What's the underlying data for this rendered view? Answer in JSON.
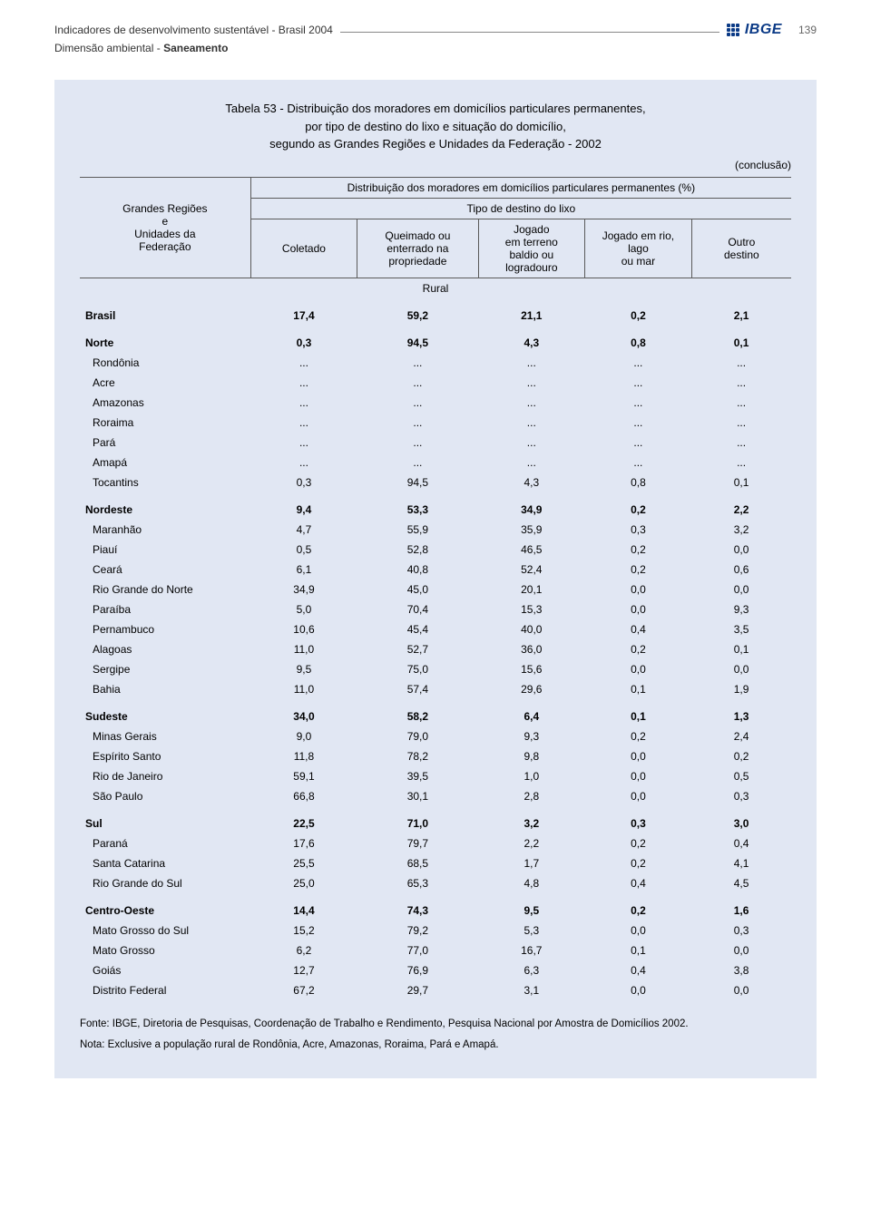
{
  "document": {
    "header_line1": "Indicadores de desenvolvimento sustentável - Brasil 2004",
    "header_line2_prefix": "Dimensão ambiental - ",
    "header_line2_bold": "Saneamento",
    "page_number": "139",
    "logo_text": "IBGE"
  },
  "table": {
    "title_line1": "Tabela 53 - Distribuição dos moradores em domicílios particulares permanentes,",
    "title_line2": "por tipo de destino do lixo e situação do domicílio,",
    "title_line3": "segundo as Grandes Regiões e Unidades da Federação - 2002",
    "conclusao": "(conclusão)",
    "dist_caption": "Distribuição dos moradores em domicílios particulares permanentes (%)",
    "col_region_line1": "Grandes Regiões",
    "col_region_line2": "e",
    "col_region_line3": "Unidades da",
    "col_region_line4": "Federação",
    "col_tipo": "Tipo de destino do lixo",
    "col_coletado": "Coletado",
    "col_queimado_l1": "Queimado ou",
    "col_queimado_l2": "enterrado na",
    "col_queimado_l3": "propriedade",
    "col_jogado_terreno_l1": "Jogado",
    "col_jogado_terreno_l2": "em terreno",
    "col_jogado_terreno_l3": "baldio ou",
    "col_jogado_terreno_l4": "logradouro",
    "col_jogado_rio_l1": "Jogado em rio,",
    "col_jogado_rio_l2": "lago",
    "col_jogado_rio_l3": "ou mar",
    "col_outro_l1": "Outro",
    "col_outro_l2": "destino",
    "rural_label": "Rural",
    "rows": [
      {
        "label": "Brasil",
        "bold": true,
        "v": [
          "17,4",
          "59,2",
          "21,1",
          "0,2",
          "2,1"
        ]
      },
      {
        "label": "Norte",
        "bold": true,
        "v": [
          "0,3",
          "94,5",
          "4,3",
          "0,8",
          "0,1"
        ]
      },
      {
        "label": "Rondônia",
        "bold": false,
        "v": [
          "...",
          "...",
          "...",
          "...",
          "..."
        ]
      },
      {
        "label": "Acre",
        "bold": false,
        "v": [
          "...",
          "...",
          "...",
          "...",
          "..."
        ]
      },
      {
        "label": "Amazonas",
        "bold": false,
        "v": [
          "...",
          "...",
          "...",
          "...",
          "..."
        ]
      },
      {
        "label": "Roraima",
        "bold": false,
        "v": [
          "...",
          "...",
          "...",
          "...",
          "..."
        ]
      },
      {
        "label": "Pará",
        "bold": false,
        "v": [
          "...",
          "...",
          "...",
          "...",
          "..."
        ]
      },
      {
        "label": "Amapá",
        "bold": false,
        "v": [
          "...",
          "...",
          "...",
          "...",
          "..."
        ]
      },
      {
        "label": "Tocantins",
        "bold": false,
        "v": [
          "0,3",
          "94,5",
          "4,3",
          "0,8",
          "0,1"
        ]
      },
      {
        "label": "Nordeste",
        "bold": true,
        "v": [
          "9,4",
          "53,3",
          "34,9",
          "0,2",
          "2,2"
        ]
      },
      {
        "label": "Maranhão",
        "bold": false,
        "v": [
          "4,7",
          "55,9",
          "35,9",
          "0,3",
          "3,2"
        ]
      },
      {
        "label": "Piauí",
        "bold": false,
        "v": [
          "0,5",
          "52,8",
          "46,5",
          "0,2",
          "0,0"
        ]
      },
      {
        "label": "Ceará",
        "bold": false,
        "v": [
          "6,1",
          "40,8",
          "52,4",
          "0,2",
          "0,6"
        ]
      },
      {
        "label": "Rio Grande do Norte",
        "bold": false,
        "v": [
          "34,9",
          "45,0",
          "20,1",
          "0,0",
          "0,0"
        ]
      },
      {
        "label": "Paraíba",
        "bold": false,
        "v": [
          "5,0",
          "70,4",
          "15,3",
          "0,0",
          "9,3"
        ]
      },
      {
        "label": "Pernambuco",
        "bold": false,
        "v": [
          "10,6",
          "45,4",
          "40,0",
          "0,4",
          "3,5"
        ]
      },
      {
        "label": "Alagoas",
        "bold": false,
        "v": [
          "11,0",
          "52,7",
          "36,0",
          "0,2",
          "0,1"
        ]
      },
      {
        "label": "Sergipe",
        "bold": false,
        "v": [
          "9,5",
          "75,0",
          "15,6",
          "0,0",
          "0,0"
        ]
      },
      {
        "label": "Bahia",
        "bold": false,
        "v": [
          "11,0",
          "57,4",
          "29,6",
          "0,1",
          "1,9"
        ]
      },
      {
        "label": "Sudeste",
        "bold": true,
        "v": [
          "34,0",
          "58,2",
          "6,4",
          "0,1",
          "1,3"
        ]
      },
      {
        "label": "Minas Gerais",
        "bold": false,
        "v": [
          "9,0",
          "79,0",
          "9,3",
          "0,2",
          "2,4"
        ]
      },
      {
        "label": "Espírito Santo",
        "bold": false,
        "v": [
          "11,8",
          "78,2",
          "9,8",
          "0,0",
          "0,2"
        ]
      },
      {
        "label": "Rio de Janeiro",
        "bold": false,
        "v": [
          "59,1",
          "39,5",
          "1,0",
          "0,0",
          "0,5"
        ]
      },
      {
        "label": "São Paulo",
        "bold": false,
        "v": [
          "66,8",
          "30,1",
          "2,8",
          "0,0",
          "0,3"
        ]
      },
      {
        "label": "Sul",
        "bold": true,
        "v": [
          "22,5",
          "71,0",
          "3,2",
          "0,3",
          "3,0"
        ]
      },
      {
        "label": "Paraná",
        "bold": false,
        "v": [
          "17,6",
          "79,7",
          "2,2",
          "0,2",
          "0,4"
        ]
      },
      {
        "label": "Santa Catarina",
        "bold": false,
        "v": [
          "25,5",
          "68,5",
          "1,7",
          "0,2",
          "4,1"
        ]
      },
      {
        "label": "Rio Grande do Sul",
        "bold": false,
        "v": [
          "25,0",
          "65,3",
          "4,8",
          "0,4",
          "4,5"
        ]
      },
      {
        "label": "Centro-Oeste",
        "bold": true,
        "v": [
          "14,4",
          "74,3",
          "9,5",
          "0,2",
          "1,6"
        ]
      },
      {
        "label": "Mato Grosso do Sul",
        "bold": false,
        "v": [
          "15,2",
          "79,2",
          "5,3",
          "0,0",
          "0,3"
        ]
      },
      {
        "label": "Mato Grosso",
        "bold": false,
        "v": [
          "6,2",
          "77,0",
          "16,7",
          "0,1",
          "0,0"
        ]
      },
      {
        "label": "Goiás",
        "bold": false,
        "v": [
          "12,7",
          "76,9",
          "6,3",
          "0,4",
          "3,8"
        ]
      },
      {
        "label": "Distrito Federal",
        "bold": false,
        "v": [
          "67,2",
          "29,7",
          "3,1",
          "0,0",
          "0,0"
        ]
      }
    ],
    "source": "Fonte: IBGE, Diretoria de Pesquisas, Coordenação de Trabalho e Rendimento, Pesquisa Nacional por Amostra de Domicílios 2002.",
    "note": "Nota: Exclusive a população rural de Rondônia, Acre, Amazonas, Roraima, Pará e Amapá."
  },
  "style": {
    "page_bg": "#ffffff",
    "box_bg": "#e1e7f3",
    "rule_color": "#5a5a5a",
    "logo_color": "#0b3a86",
    "header_text_color": "#333333",
    "font_size_body": 12,
    "font_size_title": 13,
    "font_size_src": 11.5,
    "col_widths_pct": [
      24,
      15,
      17,
      15,
      15,
      14
    ]
  }
}
